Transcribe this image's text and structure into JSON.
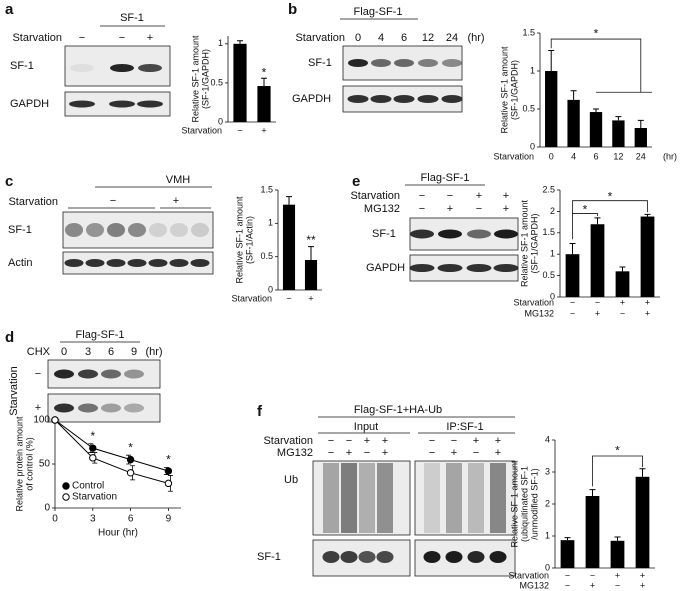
{
  "blots": {
    "a": {
      "label": "a",
      "header": "SF-1",
      "condition": "Starvation",
      "lanes": [
        "−",
        "−",
        "+"
      ],
      "rows": [
        "SF-1",
        "GAPDH"
      ]
    },
    "b": {
      "label": "b",
      "header": "Flag-SF-1",
      "condition": "Starvation",
      "lanes": [
        "0",
        "4",
        "6",
        "12",
        "24"
      ],
      "unit": "(hr)",
      "rows": [
        "SF-1",
        "GAPDH"
      ]
    },
    "c": {
      "label": "c",
      "header": "VMH",
      "condition": "Starvation",
      "groups": [
        "−",
        "+"
      ],
      "rows": [
        "SF-1",
        "Actin"
      ]
    },
    "d": {
      "label": "d",
      "header": "Flag-SF-1",
      "condition": "CHX",
      "lanes": [
        "0",
        "3",
        "6",
        "9"
      ],
      "unit": "(hr)",
      "side_label": "Starvation",
      "side_rows": [
        "−",
        "+"
      ]
    },
    "e": {
      "label": "e",
      "header": "Flag-SF-1",
      "conditions": [
        {
          "name": "Starvation",
          "lanes": [
            "−",
            "−",
            "+",
            "+"
          ]
        },
        {
          "name": "MG132",
          "lanes": [
            "−",
            "+",
            "−",
            "+"
          ]
        }
      ],
      "rows": [
        "SF-1",
        "GAPDH"
      ]
    },
    "f": {
      "label": "f",
      "header": "Flag-SF-1+HA-Ub",
      "groups": [
        "Input",
        "IP:SF-1"
      ],
      "conditions": [
        {
          "name": "Starvation",
          "lanes": [
            "−",
            "−",
            "+",
            "+",
            "−",
            "−",
            "+",
            "+"
          ]
        },
        {
          "name": "MG132",
          "lanes": [
            "−",
            "+",
            "−",
            "+",
            "−",
            "+",
            "−",
            "+"
          ]
        }
      ],
      "rows": [
        "Ub",
        "SF-1"
      ]
    }
  },
  "chart_data": [
    {
      "type": "bar",
      "y_label": [
        "Relative SF-1 amount",
        "(SF-1/GAPDH)"
      ],
      "category_label": "Starvation",
      "categories": [
        "−",
        "+"
      ],
      "values": [
        1.0,
        0.46
      ],
      "errors": [
        0.04,
        0.1
      ],
      "color": "#000000",
      "ylim": [
        0,
        1.1
      ],
      "yticks": [
        0,
        0.5,
        1
      ],
      "annotations": [
        {
          "text": "*"
        }
      ]
    },
    {
      "type": "bar",
      "y_label": [
        "Relative SF-1 amount",
        "(SF-1/GAPDH)"
      ],
      "category_label": "Starvation",
      "categories": [
        "0",
        "4",
        "6",
        "12",
        "24"
      ],
      "x_unit": "(hr)",
      "values": [
        1.0,
        0.62,
        0.46,
        0.35,
        0.25
      ],
      "errors": [
        0.27,
        0.12,
        0.04,
        0.05,
        0.1
      ],
      "color": "#000000",
      "ylim": [
        0,
        1.5
      ],
      "yticks": [
        0,
        0.5,
        1,
        1.5
      ],
      "annotations": [
        {
          "text": "*"
        }
      ]
    },
    {
      "type": "bar",
      "y_label": [
        "Relative SF-1 amount",
        "(SF-1/Actin)"
      ],
      "category_label": "Starvation",
      "categories": [
        "−",
        "+"
      ],
      "values": [
        1.28,
        0.45
      ],
      "errors": [
        0.12,
        0.2
      ],
      "color": "#000000",
      "ylim": [
        0,
        1.5
      ],
      "yticks": [
        0,
        0.5,
        1,
        1.5
      ],
      "annotations": [
        {
          "text": "**"
        }
      ]
    },
    {
      "type": "line",
      "x_label": "Hour (hr)",
      "y_label": [
        "Relative protein amount",
        "of control (%)"
      ],
      "x": [
        0,
        3,
        6,
        9
      ],
      "xlim": [
        0,
        10
      ],
      "xticks": [
        0,
        3,
        6,
        9
      ],
      "ylim": [
        0,
        100
      ],
      "yticks": [
        0,
        50,
        100
      ],
      "series": [
        {
          "name": "Control",
          "color": "#000000",
          "marker_fill": "#000000",
          "values": [
            100,
            68,
            55,
            42
          ],
          "errors": [
            0,
            5,
            5,
            4
          ]
        },
        {
          "name": "Starvation",
          "color": "#000000",
          "marker_fill": "#ffffff",
          "values": [
            100,
            57,
            40,
            28
          ],
          "errors": [
            0,
            6,
            8,
            9
          ]
        }
      ],
      "annotations": [
        {
          "x": 3,
          "text": "*"
        },
        {
          "x": 6,
          "text": "*"
        },
        {
          "x": 9,
          "text": "*"
        }
      ]
    },
    {
      "type": "bar",
      "y_label": [
        "Relative SF-1 amount",
        "(SF-1/GAPDH)"
      ],
      "category_label": "Starvation",
      "categories": [
        "−",
        "−",
        "+",
        "+"
      ],
      "category2_label": "MG132",
      "categories2": [
        "−",
        "+",
        "−",
        "+"
      ],
      "values": [
        1.0,
        1.7,
        0.6,
        1.88
      ],
      "errors": [
        0.25,
        0.15,
        0.1,
        0.05
      ],
      "color": "#000000",
      "ylim": [
        0,
        2.5
      ],
      "yticks": [
        0,
        0.5,
        1,
        1.5,
        2,
        2.5
      ],
      "annotations": [
        {
          "text": "*"
        },
        {
          "text": "*"
        }
      ]
    },
    {
      "type": "bar",
      "y_label": [
        "Relative SF-1 amount",
        "(ubiquitinated SF-1",
        "/unmodified SF-1)"
      ],
      "category_label": "Starvation",
      "categories": [
        "−",
        "−",
        "+",
        "+"
      ],
      "category2_label": "MG132",
      "categories2": [
        "−",
        "+",
        "−",
        "+"
      ],
      "values": [
        0.87,
        2.25,
        0.85,
        2.85
      ],
      "errors": [
        0.08,
        0.2,
        0.12,
        0.25
      ],
      "color": "#000000",
      "ylim": [
        0,
        4
      ],
      "yticks": [
        0,
        1,
        2,
        3,
        4
      ],
      "annotations": [
        {
          "text": "*"
        }
      ]
    }
  ]
}
